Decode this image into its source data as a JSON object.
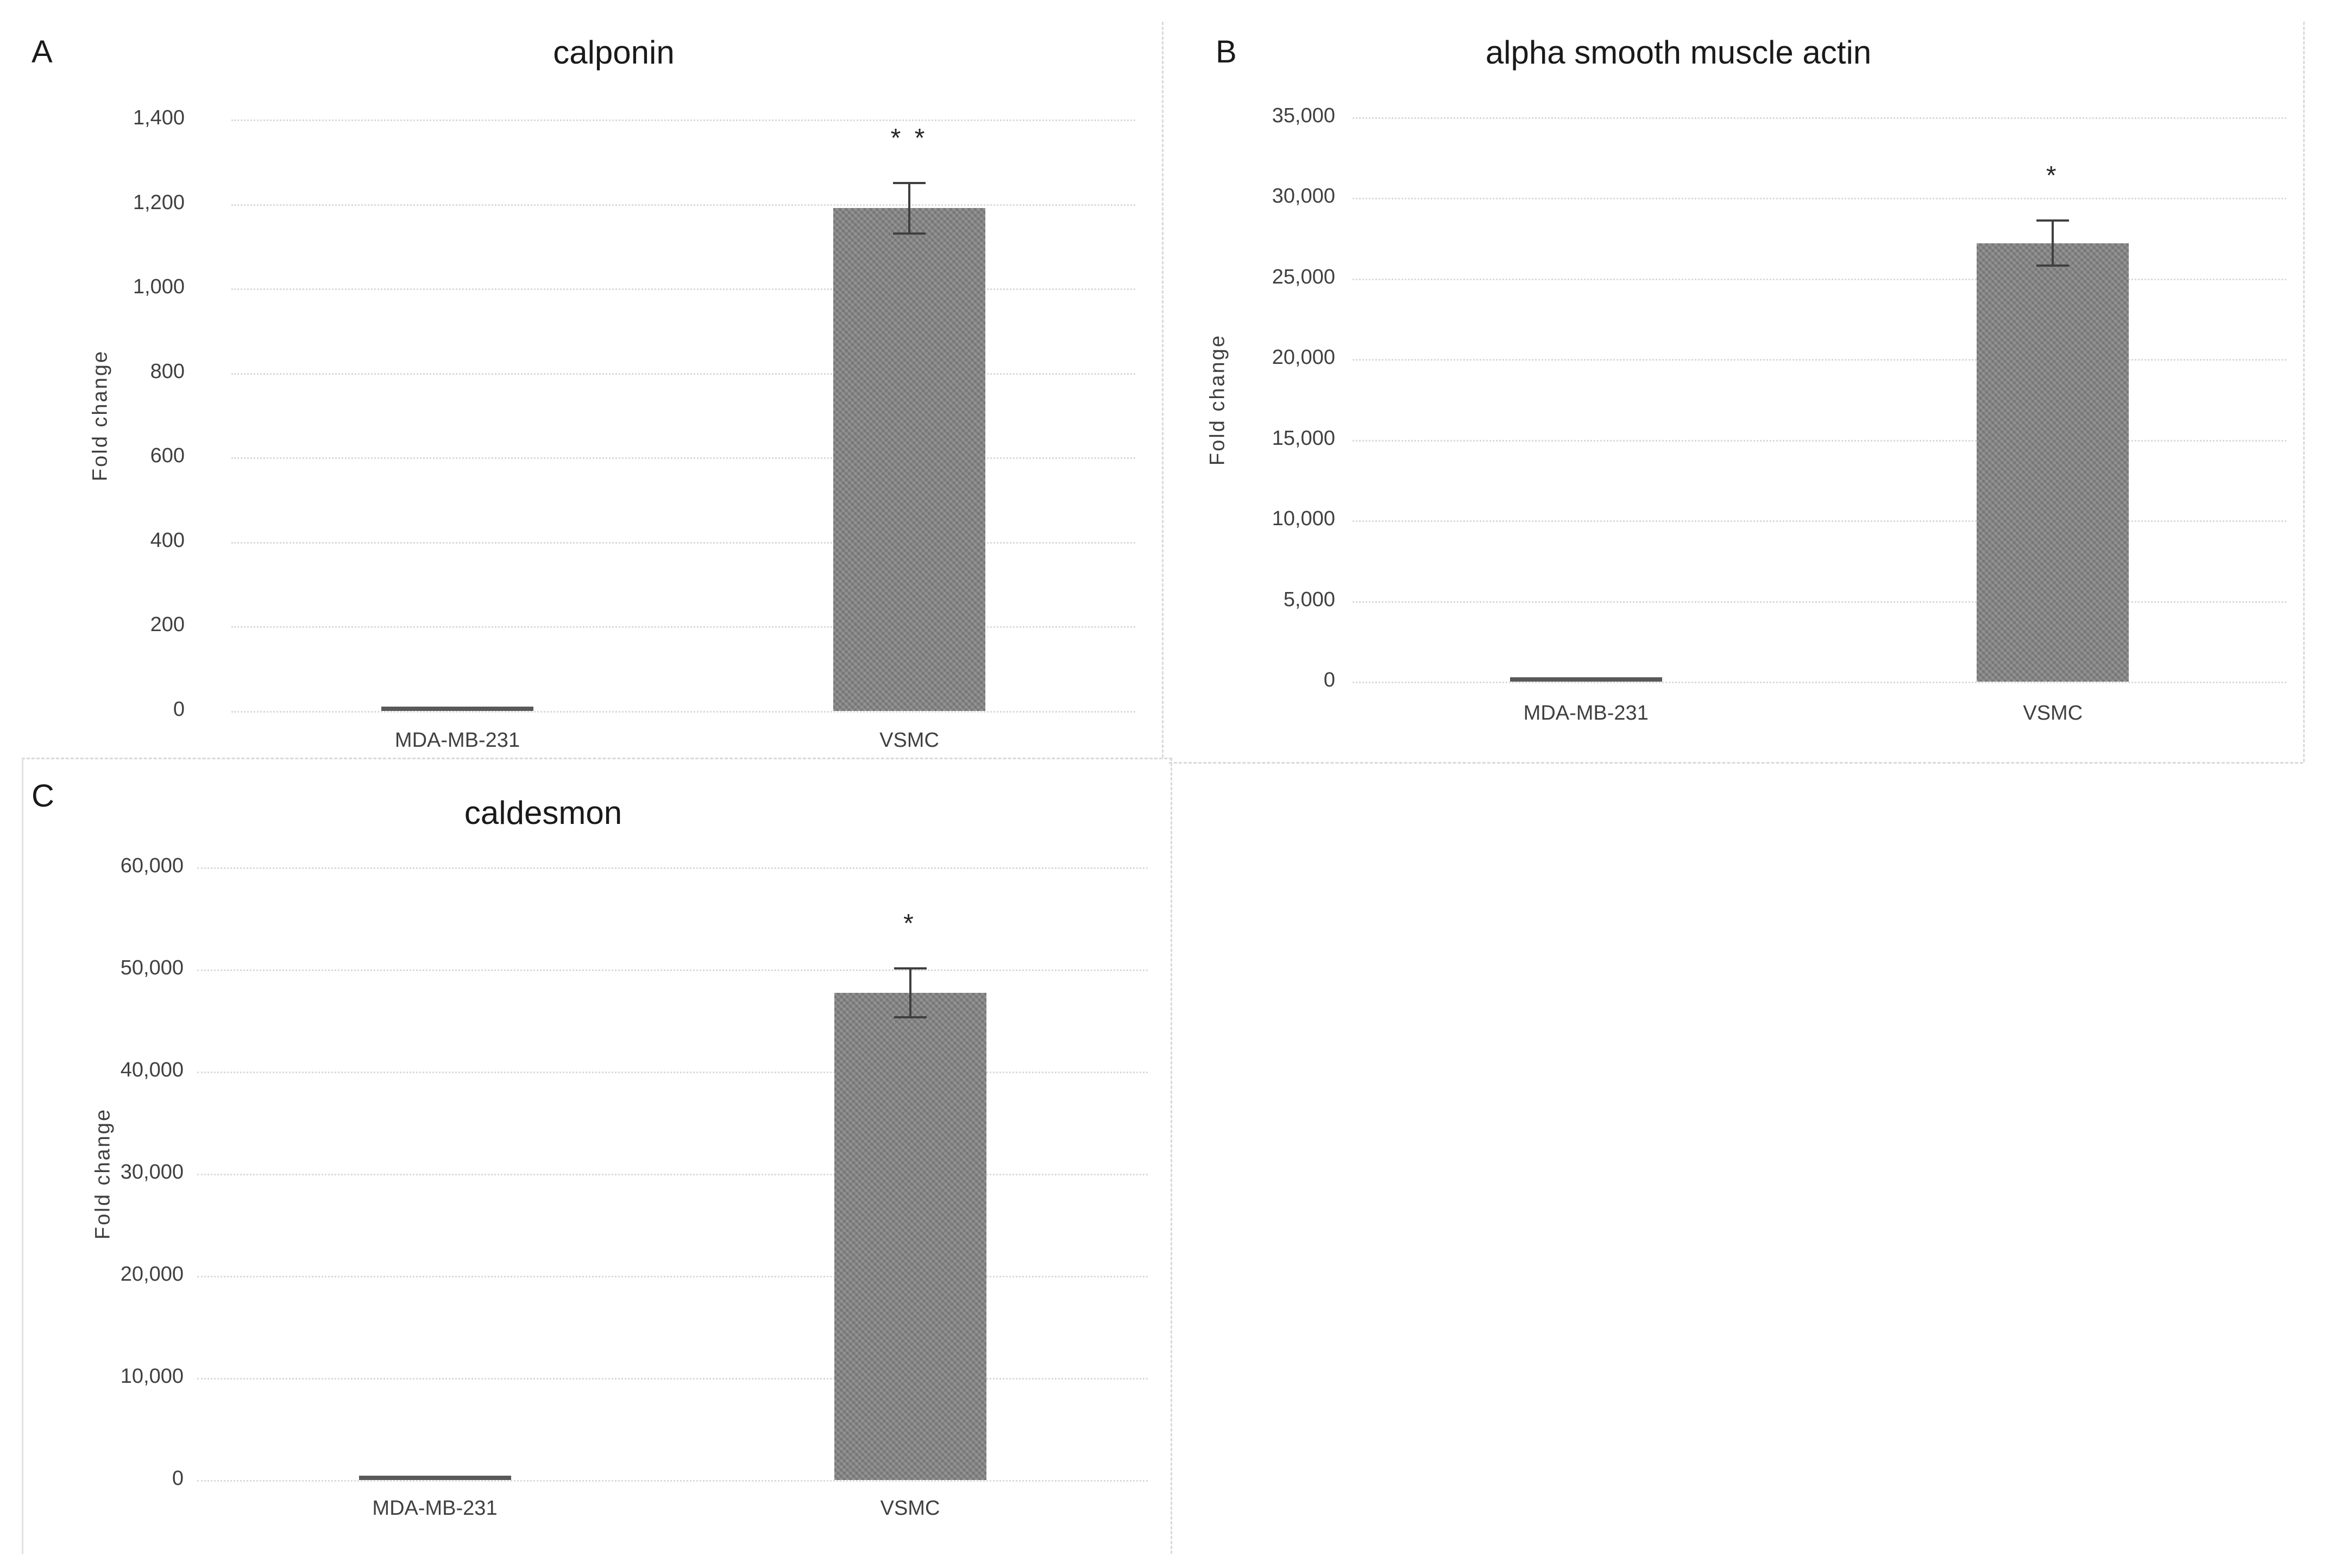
{
  "figure": {
    "background": "#ffffff",
    "description": "Three-panel bar chart figure comparing gene expression fold change between MDA-MB-231 cells and vascular smooth muscle cells (VSMC)"
  },
  "colors": {
    "bar_fill": "#828282",
    "tiny_bar_fill": "#595959",
    "gridline": "#d9d9d9",
    "panel_border": "#d9d9d9",
    "text": "#404040",
    "title_text": "#1a1a1a",
    "error_bar": "#3f3f3f"
  },
  "chart_data": [
    {
      "type": "bar",
      "panel_label": "A",
      "title": "calponin",
      "ylabel": "Fold change",
      "xlabel": "",
      "categories": [
        "MDA-MB-231",
        "VSMC"
      ],
      "values": [
        5,
        1190
      ],
      "errors": [
        null,
        60
      ],
      "significance": [
        "",
        "* *"
      ],
      "ylim": [
        0,
        1400
      ],
      "yticks": [
        "1,400",
        "1,200",
        "1,000",
        "800",
        "600",
        "400",
        "200",
        "0"
      ],
      "grid": true,
      "legend": "none"
    },
    {
      "type": "bar",
      "panel_label": "B",
      "title": "alpha smooth muscle actin",
      "ylabel": "Fold change",
      "xlabel": "",
      "categories": [
        "MDA-MB-231",
        "VSMC"
      ],
      "values": [
        150,
        27200
      ],
      "errors": [
        null,
        1400
      ],
      "significance": [
        "",
        "*"
      ],
      "ylim": [
        0,
        35000
      ],
      "yticks": [
        "35,000",
        "30,000",
        "25,000",
        "20,000",
        "15,000",
        "10,000",
        "5,000",
        "0"
      ],
      "grid": true,
      "legend": "none"
    },
    {
      "type": "bar",
      "panel_label": "C",
      "title": "caldesmon",
      "ylabel": "Fold change",
      "xlabel": "",
      "categories": [
        "MDA-MB-231",
        "VSMC"
      ],
      "values": [
        250,
        47700
      ],
      "errors": [
        null,
        2400
      ],
      "significance": [
        "",
        "*"
      ],
      "ylim": [
        0,
        60000
      ],
      "yticks": [
        "60,000",
        "50,000",
        "40,000",
        "30,000",
        "20,000",
        "10,000",
        "0"
      ],
      "grid": true,
      "legend": "none"
    }
  ]
}
